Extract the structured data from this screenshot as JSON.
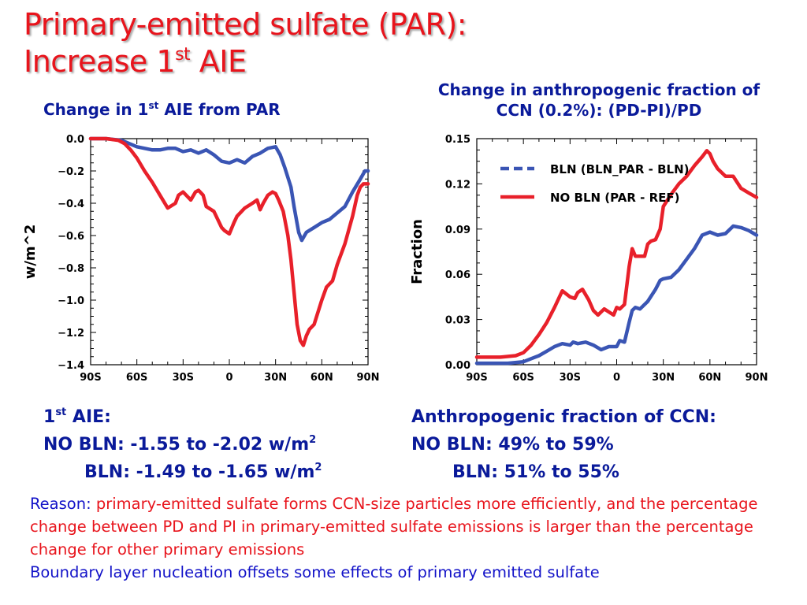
{
  "slide": {
    "title_line1": "Primary-emitted sulfate (PAR):",
    "title_line2_pre": "Increase 1",
    "title_line2_sup": "st",
    "title_line2_post": " AIE"
  },
  "left_chart_title": {
    "pre": "Change in 1",
    "sup": "st",
    "post": " AIE from PAR"
  },
  "right_chart_title": {
    "line1": "Change in anthropogenic fraction of",
    "line2": "CCN (0.2%): (PD-PI)/PD"
  },
  "summary_left": {
    "head_pre": "1",
    "head_sup": "st",
    "head_post": " AIE:",
    "line2": "NO BLN:  -1.55 to -2.02 w/m",
    "line2_sup": "2",
    "line3": "BLN:  -1.49 to -1.65 w/m",
    "line3_sup": "2"
  },
  "summary_right": {
    "head": "Anthropogenic fraction of CCN:",
    "line2": "NO BLN:  49% to 59%",
    "line3": "BLN:  51% to 55%"
  },
  "reason": {
    "label": "Reason: ",
    "text": "primary-emitted sulfate forms CCN-size particles more efficiently, and the percentage change between PD and PI in primary-emitted sulfate emissions is larger than the percentage change for other primary emissions",
    "line2": "Boundary layer nucleation offsets some effects of primary emitted sulfate"
  },
  "colors": {
    "title_red": "#e8141c",
    "navy": "#0a1a9a",
    "blue_series": "#3a55b4",
    "red_series": "#e8202a"
  },
  "chart_data": [
    {
      "type": "line",
      "ylabel": "w/m^2",
      "xlim": [
        -90,
        90
      ],
      "ylim": [
        -1.4,
        0.0
      ],
      "xticks": [
        -90,
        -60,
        -30,
        0,
        30,
        60,
        90
      ],
      "xtick_labels": [
        "90S",
        "60S",
        "30S",
        "0",
        "30N",
        "60N",
        "90N"
      ],
      "yticks": [
        0.0,
        -0.2,
        -0.4,
        -0.6,
        -0.8,
        -1.0,
        -1.2,
        -1.4
      ],
      "ytick_labels": [
        "0.0",
        "−0.2",
        "−0.4",
        "−0.6",
        "−0.8",
        "−1.0",
        "−1.2",
        "−1.4"
      ],
      "grid": false,
      "series": [
        {
          "color": "#3a55b4",
          "x": [
            -90,
            -80,
            -70,
            -65,
            -60,
            -55,
            -50,
            -45,
            -40,
            -35,
            -30,
            -25,
            -20,
            -15,
            -10,
            -5,
            0,
            5,
            10,
            15,
            20,
            25,
            30,
            33,
            36,
            40,
            42,
            45,
            47,
            50,
            55,
            60,
            65,
            70,
            75,
            80,
            85,
            88,
            90
          ],
          "y": [
            0.0,
            0.0,
            -0.01,
            -0.03,
            -0.05,
            -0.06,
            -0.07,
            -0.07,
            -0.06,
            -0.06,
            -0.08,
            -0.07,
            -0.09,
            -0.07,
            -0.1,
            -0.14,
            -0.15,
            -0.13,
            -0.15,
            -0.11,
            -0.09,
            -0.06,
            -0.05,
            -0.1,
            -0.18,
            -0.3,
            -0.42,
            -0.58,
            -0.63,
            -0.58,
            -0.55,
            -0.52,
            -0.5,
            -0.46,
            -0.42,
            -0.33,
            -0.25,
            -0.2,
            -0.2
          ]
        },
        {
          "color": "#e8202a",
          "x": [
            -90,
            -80,
            -72,
            -68,
            -64,
            -60,
            -55,
            -50,
            -45,
            -40,
            -35,
            -33,
            -30,
            -27,
            -25,
            -22,
            -20,
            -17,
            -15,
            -10,
            -5,
            -3,
            0,
            3,
            5,
            10,
            15,
            18,
            20,
            22,
            25,
            28,
            30,
            32,
            35,
            38,
            40,
            42,
            44,
            46,
            48,
            50,
            52,
            55,
            60,
            63,
            65,
            67,
            70,
            75,
            80,
            83,
            85,
            87,
            90
          ],
          "y": [
            0.0,
            0.0,
            -0.01,
            -0.03,
            -0.07,
            -0.12,
            -0.2,
            -0.27,
            -0.35,
            -0.43,
            -0.4,
            -0.35,
            -0.33,
            -0.36,
            -0.38,
            -0.33,
            -0.32,
            -0.35,
            -0.42,
            -0.45,
            -0.55,
            -0.57,
            -0.59,
            -0.52,
            -0.48,
            -0.43,
            -0.4,
            -0.38,
            -0.44,
            -0.4,
            -0.35,
            -0.33,
            -0.34,
            -0.38,
            -0.45,
            -0.6,
            -0.75,
            -0.95,
            -1.15,
            -1.25,
            -1.28,
            -1.22,
            -1.18,
            -1.15,
            -1.0,
            -0.92,
            -0.9,
            -0.88,
            -0.78,
            -0.65,
            -0.48,
            -0.35,
            -0.3,
            -0.28,
            -0.28
          ]
        }
      ]
    },
    {
      "type": "line",
      "ylabel": "Fraction",
      "xlim": [
        -90,
        90
      ],
      "ylim": [
        0.0,
        0.15
      ],
      "xticks": [
        -90,
        -60,
        -30,
        0,
        30,
        60,
        90
      ],
      "xtick_labels": [
        "90S",
        "60S",
        "30S",
        "0",
        "30N",
        "60N",
        "90N"
      ],
      "yticks": [
        0.0,
        0.03,
        0.06,
        0.09,
        0.12,
        0.15
      ],
      "ytick_labels": [
        "0.00",
        "0.03",
        "0.06",
        "0.09",
        "0.12",
        "0.15"
      ],
      "grid": false,
      "legend": "top-left",
      "series": [
        {
          "name": "BLN (BLN_PAR - BLN)",
          "dash": "dashed",
          "color": "#3a55b4",
          "x": [
            -90,
            -70,
            -60,
            -55,
            -50,
            -45,
            -40,
            -35,
            -30,
            -28,
            -25,
            -20,
            -15,
            -10,
            -5,
            0,
            2,
            5,
            8,
            10,
            12,
            15,
            20,
            25,
            28,
            30,
            35,
            40,
            45,
            50,
            55,
            60,
            65,
            70,
            75,
            80,
            85,
            90
          ],
          "y": [
            0.001,
            0.001,
            0.002,
            0.004,
            0.006,
            0.009,
            0.012,
            0.014,
            0.013,
            0.015,
            0.014,
            0.015,
            0.013,
            0.01,
            0.012,
            0.012,
            0.016,
            0.015,
            0.028,
            0.036,
            0.038,
            0.037,
            0.042,
            0.05,
            0.056,
            0.057,
            0.058,
            0.063,
            0.07,
            0.077,
            0.086,
            0.088,
            0.086,
            0.087,
            0.092,
            0.091,
            0.089,
            0.086
          ]
        },
        {
          "name": "NO BLN (PAR - REF)",
          "dash": "solid",
          "color": "#e8202a",
          "x": [
            -90,
            -75,
            -65,
            -60,
            -55,
            -50,
            -45,
            -40,
            -35,
            -30,
            -27,
            -25,
            -22,
            -18,
            -15,
            -12,
            -8,
            -5,
            -2,
            0,
            2,
            5,
            8,
            10,
            12,
            15,
            18,
            20,
            22,
            25,
            28,
            30,
            35,
            40,
            45,
            50,
            55,
            58,
            60,
            62,
            65,
            70,
            75,
            80,
            85,
            90
          ],
          "y": [
            0.005,
            0.005,
            0.006,
            0.008,
            0.013,
            0.02,
            0.028,
            0.038,
            0.049,
            0.045,
            0.044,
            0.048,
            0.05,
            0.043,
            0.036,
            0.033,
            0.037,
            0.035,
            0.033,
            0.038,
            0.037,
            0.04,
            0.065,
            0.077,
            0.072,
            0.072,
            0.072,
            0.08,
            0.082,
            0.083,
            0.09,
            0.105,
            0.113,
            0.12,
            0.125,
            0.132,
            0.138,
            0.142,
            0.14,
            0.135,
            0.13,
            0.125,
            0.125,
            0.117,
            0.114,
            0.111
          ]
        }
      ]
    }
  ]
}
